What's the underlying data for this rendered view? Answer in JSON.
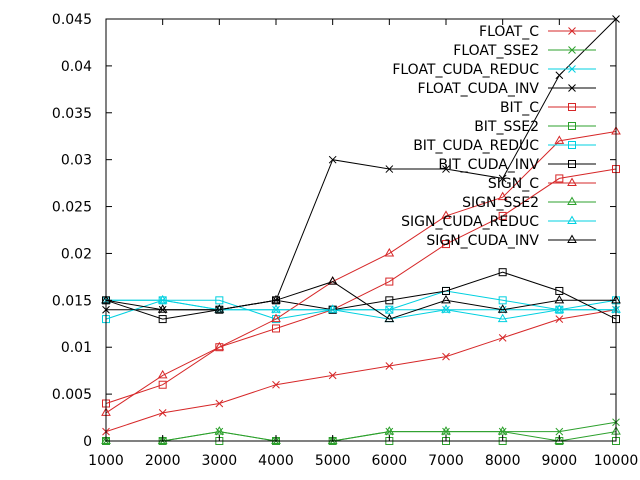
{
  "chart_data": {
    "type": "line",
    "title": "",
    "xlabel": "",
    "ylabel": "",
    "x": [
      1000,
      2000,
      3000,
      4000,
      5000,
      6000,
      7000,
      8000,
      9000,
      10000
    ],
    "xlim": [
      1000,
      10000
    ],
    "ylim": [
      0,
      0.045
    ],
    "x_ticks": [
      "1000",
      "2000",
      "3000",
      "4000",
      "5000",
      "6000",
      "7000",
      "8000",
      "9000",
      "10000"
    ],
    "y_ticks": [
      "0",
      "0.005",
      "0.01",
      "0.015",
      "0.02",
      "0.025",
      "0.03",
      "0.035",
      "0.04",
      "0.045"
    ],
    "y_tick_values": [
      0,
      0.005,
      0.01,
      0.015,
      0.02,
      0.025,
      0.03,
      0.035,
      0.04,
      0.045
    ],
    "grid": false,
    "legend_position": "top-right",
    "series": [
      {
        "name": "FLOAT_C",
        "color": "#d62728",
        "marker": "x",
        "values": [
          0.001,
          0.003,
          0.004,
          0.006,
          0.007,
          0.008,
          0.009,
          0.011,
          0.013,
          0.014
        ]
      },
      {
        "name": "FLOAT_SSE2",
        "color": "#2ca02c",
        "marker": "x",
        "values": [
          0.0,
          0.0,
          0.001,
          0.0,
          0.0,
          0.001,
          0.001,
          0.001,
          0.001,
          0.002
        ]
      },
      {
        "name": "FLOAT_CUDA_REDUC",
        "color": "#00d0e0",
        "marker": "x",
        "values": [
          0.015,
          0.015,
          0.014,
          0.014,
          0.014,
          0.014,
          0.014,
          0.014,
          0.014,
          0.014
        ]
      },
      {
        "name": "FLOAT_CUDA_INV",
        "color": "#000000",
        "marker": "x",
        "values": [
          0.014,
          0.014,
          0.014,
          0.015,
          0.03,
          0.029,
          0.029,
          0.028,
          0.039,
          0.045
        ]
      },
      {
        "name": "BIT_C",
        "color": "#d62728",
        "marker": "square",
        "values": [
          0.004,
          0.006,
          0.01,
          0.012,
          0.014,
          0.017,
          0.021,
          0.024,
          0.028,
          0.029
        ]
      },
      {
        "name": "BIT_SSE2",
        "color": "#2ca02c",
        "marker": "square",
        "values": [
          0.0,
          0.0,
          0.0,
          0.0,
          0.0,
          0.0,
          0.0,
          0.0,
          0.0,
          0.0
        ]
      },
      {
        "name": "BIT_CUDA_REDUC",
        "color": "#00d0e0",
        "marker": "square",
        "values": [
          0.013,
          0.015,
          0.015,
          0.013,
          0.014,
          0.014,
          0.016,
          0.015,
          0.014,
          0.015
        ]
      },
      {
        "name": "BIT_CUDA_INV",
        "color": "#000000",
        "marker": "square",
        "values": [
          0.015,
          0.013,
          0.014,
          0.015,
          0.014,
          0.015,
          0.016,
          0.018,
          0.016,
          0.013
        ]
      },
      {
        "name": "SIGN_C",
        "color": "#d62728",
        "marker": "triangle",
        "values": [
          0.003,
          0.007,
          0.01,
          0.013,
          0.017,
          0.02,
          0.024,
          0.026,
          0.032,
          0.033
        ]
      },
      {
        "name": "SIGN_SSE2",
        "color": "#2ca02c",
        "marker": "triangle",
        "values": [
          0.0,
          0.0,
          0.001,
          0.0,
          0.0,
          0.001,
          0.001,
          0.001,
          0.0,
          0.001
        ]
      },
      {
        "name": "SIGN_CUDA_REDUC",
        "color": "#00d0e0",
        "marker": "triangle",
        "values": [
          0.015,
          0.015,
          0.014,
          0.014,
          0.014,
          0.013,
          0.014,
          0.013,
          0.014,
          0.014
        ]
      },
      {
        "name": "SIGN_CUDA_INV",
        "color": "#000000",
        "marker": "triangle",
        "values": [
          0.015,
          0.014,
          0.014,
          0.015,
          0.017,
          0.013,
          0.015,
          0.014,
          0.015,
          0.015
        ]
      }
    ]
  }
}
